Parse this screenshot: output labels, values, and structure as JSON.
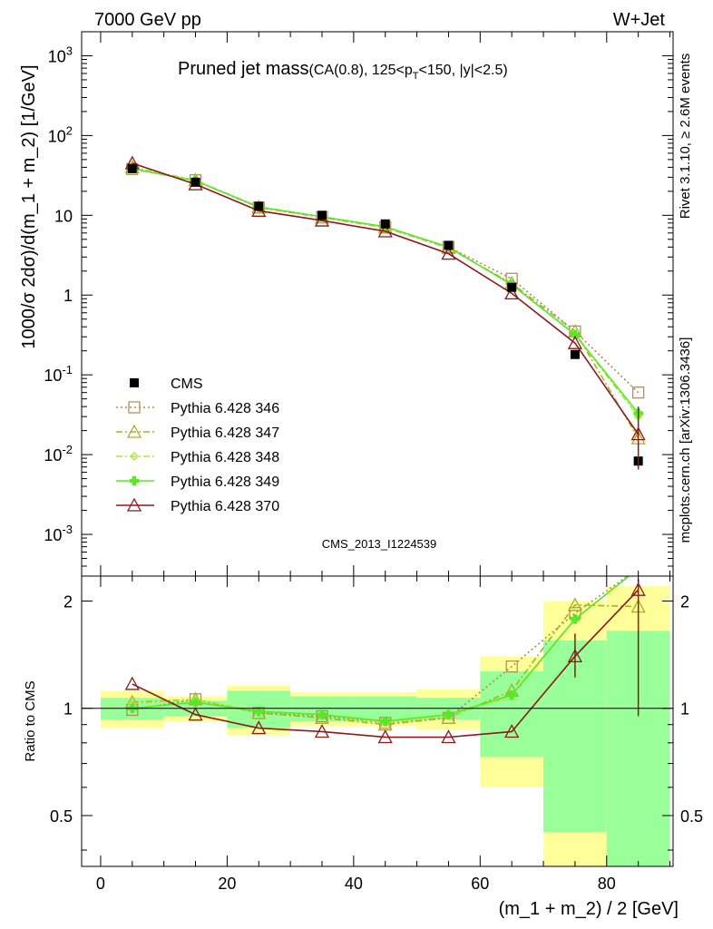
{
  "header": {
    "energy": "7000 GeV pp",
    "process": "W+Jet"
  },
  "side_labels": {
    "rivet": "Rivet 3.1.10, ≥ 2.6M events",
    "mcplots": "mcplots.cern.ch [arXiv:1306.3436]"
  },
  "chart_data": {
    "type": "line",
    "title": "Pruned jet mass",
    "subtitle": "(CA(0.8), 125<p_T<150, |y|<2.5)",
    "watermark": "CMS_2013_I1224539",
    "xlabel": "(m_1 + m_2) / 2 [GeV]",
    "ylabel": "1000/σ 2dσ)/d(m_1 + m_2) [1/GeV]",
    "ratio_ylabel": "Ratio to CMS",
    "xlim": [
      -3,
      90.5
    ],
    "ylim": [
      0.0003,
      2000
    ],
    "y_scale": "log",
    "ratio_ylim": [
      0.36,
      2.35
    ],
    "ratio_scale": "log",
    "legend_position": "left-middle",
    "x_ticks": [
      "0",
      "20",
      "40",
      "60",
      "80"
    ],
    "x_tick_values": [
      0,
      20,
      40,
      60,
      80
    ],
    "y_ticks": [
      "10^-3",
      "10^-2",
      "10^-1",
      "1",
      "10",
      "10^2",
      "10^3"
    ],
    "y_tick_values": [
      0.001,
      0.01,
      0.1,
      1,
      10,
      100,
      1000
    ],
    "ratio_ticks": [
      "0.5",
      "1",
      "2"
    ],
    "ratio_tick_values": [
      0.5,
      1,
      2
    ],
    "x": [
      5,
      15,
      25,
      35,
      45,
      55,
      65,
      75,
      85
    ],
    "bin_edges": [
      0,
      10,
      20,
      30,
      40,
      50,
      60,
      70,
      80,
      90
    ],
    "data": {
      "name": "CMS",
      "values": [
        38.5,
        26.0,
        13.0,
        10.0,
        7.8,
        4.2,
        1.25,
        0.18,
        0.0083
      ],
      "band_inner": [
        0.07,
        0.05,
        0.12,
        0.08,
        0.08,
        0.07,
        0.27,
        0.55,
        0.65
      ],
      "band_outer": [
        0.12,
        0.08,
        0.16,
        0.11,
        0.11,
        0.13,
        0.4,
        1.0,
        1.2
      ]
    },
    "series": [
      {
        "name": "Pythia 6.428 346",
        "color": "#b08850",
        "dash": "2,3",
        "marker": "square",
        "values": [
          38.0,
          27.5,
          12.5,
          9.5,
          7.1,
          4.0,
          1.6,
          0.35,
          0.06
        ],
        "ratio": [
          0.99,
          1.06,
          0.97,
          0.95,
          0.91,
          0.94,
          1.31,
          1.85,
          7.2
        ]
      },
      {
        "name": "Pythia 6.428 347",
        "color": "#a8b028",
        "dash": "7,3,2,3",
        "marker": "triangle",
        "values": [
          40.0,
          27.5,
          12.6,
          9.4,
          7.0,
          3.9,
          1.4,
          0.35,
          0.016
        ],
        "ratio": [
          1.04,
          1.06,
          0.97,
          0.94,
          0.9,
          0.94,
          1.12,
          1.95,
          1.93
        ]
      },
      {
        "name": "Pythia 6.428 348",
        "color": "#a8e838",
        "dash": "7,3,2,3",
        "marker": "diamond",
        "values": [
          39.5,
          27.5,
          12.8,
          9.6,
          7.1,
          3.95,
          1.35,
          0.32,
          0.03
        ],
        "ratio": [
          1.03,
          1.06,
          0.98,
          0.96,
          0.91,
          0.95,
          1.08,
          1.78,
          3.6
        ]
      },
      {
        "name": "Pythia 6.428 349",
        "color": "#58e828",
        "dash": "",
        "marker": "cross",
        "values": [
          38.5,
          27.0,
          12.7,
          9.6,
          7.2,
          4.0,
          1.35,
          0.32,
          0.033
        ],
        "ratio": [
          1.0,
          1.04,
          0.98,
          0.96,
          0.92,
          0.96,
          1.09,
          1.78,
          3.95
        ]
      },
      {
        "name": "Pythia 6.428 370",
        "color": "#8b1a1a",
        "dash": "",
        "marker": "triangle-open",
        "values": [
          45.0,
          24.5,
          11.4,
          8.6,
          6.3,
          3.3,
          1.05,
          0.25,
          0.018
        ],
        "ratio": [
          1.17,
          0.96,
          0.88,
          0.86,
          0.83,
          0.83,
          0.86,
          1.4,
          2.15
        ]
      }
    ]
  }
}
